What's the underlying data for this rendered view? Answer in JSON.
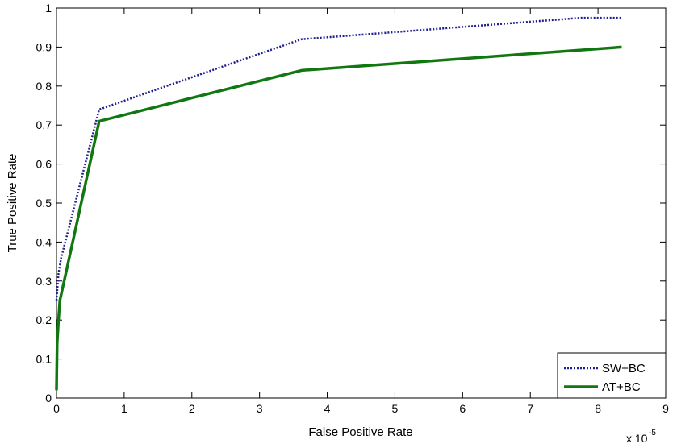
{
  "chart_data": {
    "type": "line",
    "xlabel": "False Positive Rate",
    "ylabel": "True Positive Rate",
    "x_multiplier": "x 10",
    "x_exponent": "-5",
    "xlim": [
      0,
      9
    ],
    "ylim": [
      0,
      1
    ],
    "x_ticks": [
      "0",
      "1",
      "2",
      "3",
      "4",
      "5",
      "6",
      "7",
      "8",
      "9"
    ],
    "y_ticks": [
      "0",
      "0.1",
      "0.2",
      "0.3",
      "0.4",
      "0.5",
      "0.6",
      "0.7",
      "0.8",
      "0.9",
      "1"
    ],
    "grid": false,
    "legend_position": "bottom-right",
    "series": [
      {
        "name": "SW+BC",
        "color": "#1f1f8f",
        "style": "dotted",
        "points": [
          [
            0,
            0.25
          ],
          [
            0.03,
            0.32
          ],
          [
            0.07,
            0.36
          ],
          [
            0.63,
            0.74
          ],
          [
            3.62,
            0.92
          ],
          [
            4.0,
            0.925
          ],
          [
            7.75,
            0.975
          ],
          [
            8.35,
            0.975
          ]
        ]
      },
      {
        "name": "AT+BC",
        "color": "#117711",
        "style": "solid",
        "points": [
          [
            0,
            0.02
          ],
          [
            0.01,
            0.14
          ],
          [
            0.03,
            0.2
          ],
          [
            0.05,
            0.25
          ],
          [
            0.63,
            0.71
          ],
          [
            3.62,
            0.84
          ],
          [
            8.35,
            0.9
          ]
        ]
      }
    ]
  }
}
